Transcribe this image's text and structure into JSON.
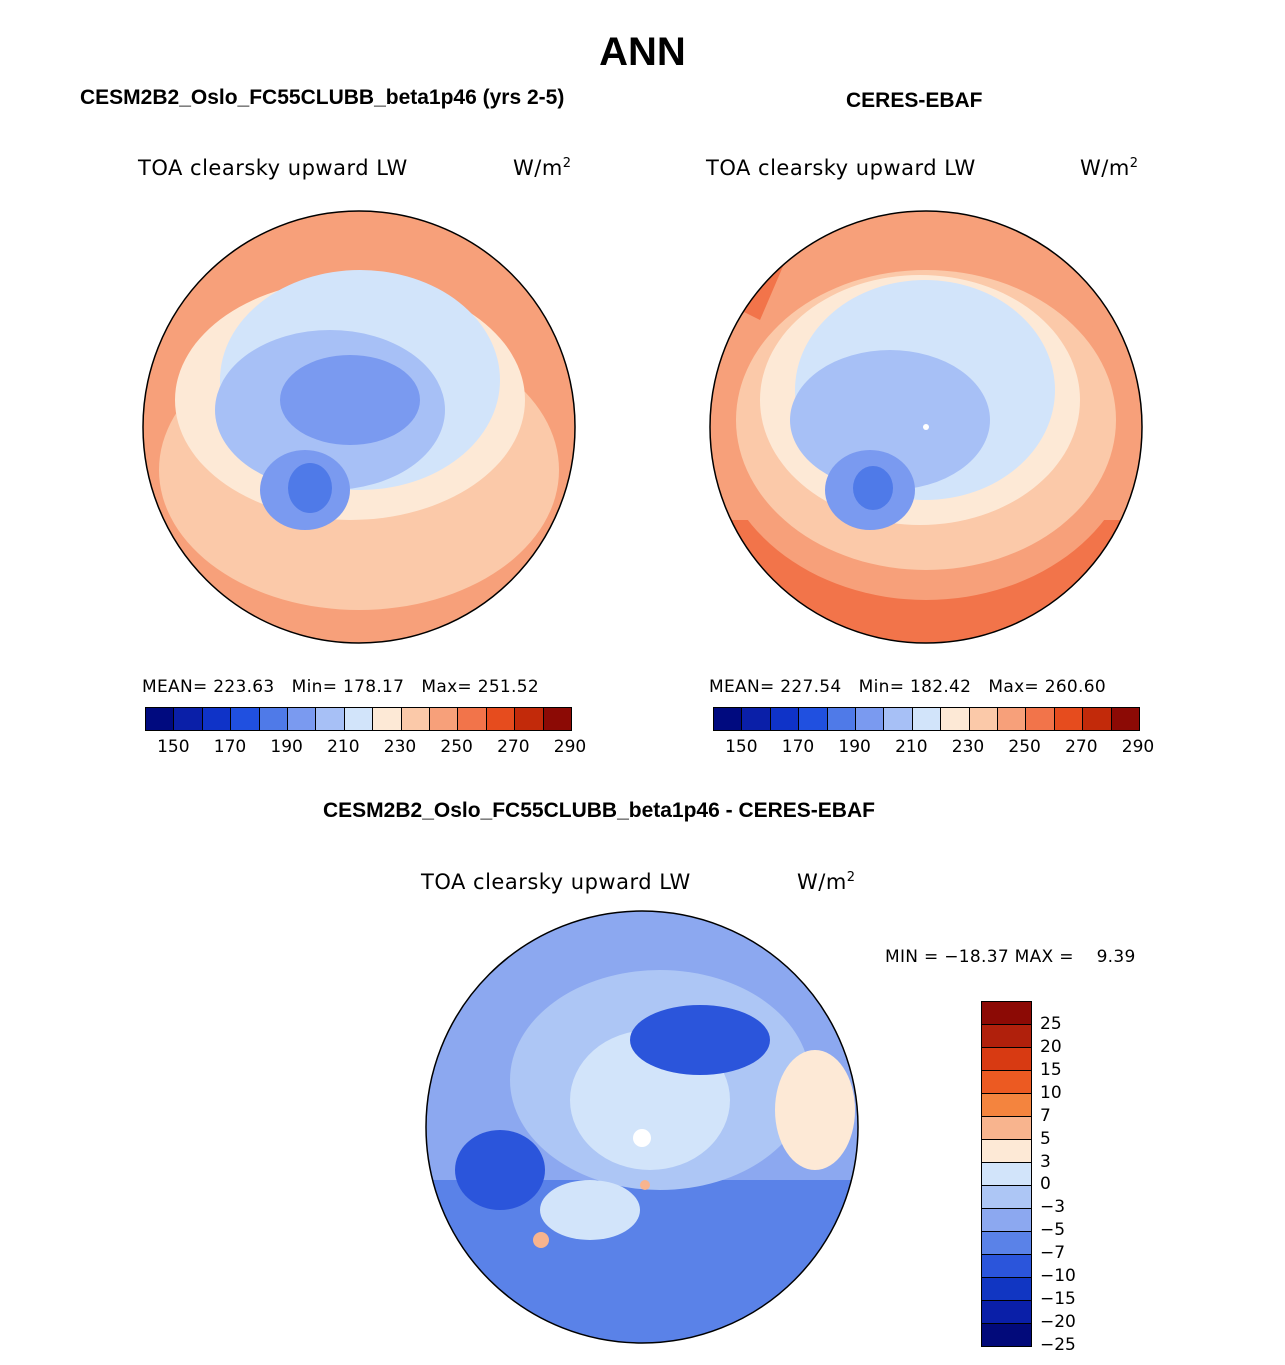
{
  "figure": {
    "season": "ANN",
    "panels": [
      {
        "title": "CESM2B2_Oslo_FC55CLUBB_beta1p46 (yrs 2-5)",
        "variable": "TOA clearsky upward LW",
        "units": "W/m",
        "units_exp": "2",
        "stats": {
          "mean_label": "MEAN=",
          "mean": "223.63",
          "min_label": "Min=",
          "min": "178.17",
          "max_label": "Max=",
          "max": "251.52"
        }
      },
      {
        "title": "CERES-EBAF",
        "variable": "TOA clearsky upward LW",
        "units": "W/m",
        "units_exp": "2",
        "stats": {
          "mean_label": "MEAN=",
          "mean": "227.54",
          "min_label": "Min=",
          "min": "182.42",
          "max_label": "Max=",
          "max": "260.60"
        }
      },
      {
        "title": "CESM2B2_Oslo_FC55CLUBB_beta1p46 - CERES-EBAF",
        "variable": "TOA clearsky upward LW",
        "units": "W/m",
        "units_exp": "2",
        "minmax": "MIN = −18.37 MAX =    9.39"
      }
    ],
    "abs_colorbar": {
      "colors": [
        "#000a7f",
        "#0a1fa8",
        "#0f33c8",
        "#2050e0",
        "#4f7ae8",
        "#7a9af0",
        "#a7c0f6",
        "#d2e4fa",
        "#fde9d6",
        "#fbc9a9",
        "#f7a07a",
        "#f2744a",
        "#e64c1e",
        "#c22a0a",
        "#8c0a05"
      ],
      "labels": [
        "150",
        "170",
        "190",
        "210",
        "230",
        "250",
        "270",
        "290"
      ]
    },
    "diff_colorbar": {
      "colors": [
        "#8c0a05",
        "#b0200c",
        "#d83a12",
        "#ec5a22",
        "#f4843e",
        "#f8b48e",
        "#fde9d6",
        "#d2e4fa",
        "#adc6f5",
        "#8ca8f0",
        "#5a82e8",
        "#2b55db",
        "#1136c2",
        "#0a1fa8",
        "#020a7a"
      ],
      "labels": [
        "25",
        "20",
        "15",
        "10",
        "7",
        "5",
        "3",
        "0",
        "−3",
        "−5",
        "−7",
        "−10",
        "−15",
        "−20",
        "−25"
      ]
    }
  }
}
